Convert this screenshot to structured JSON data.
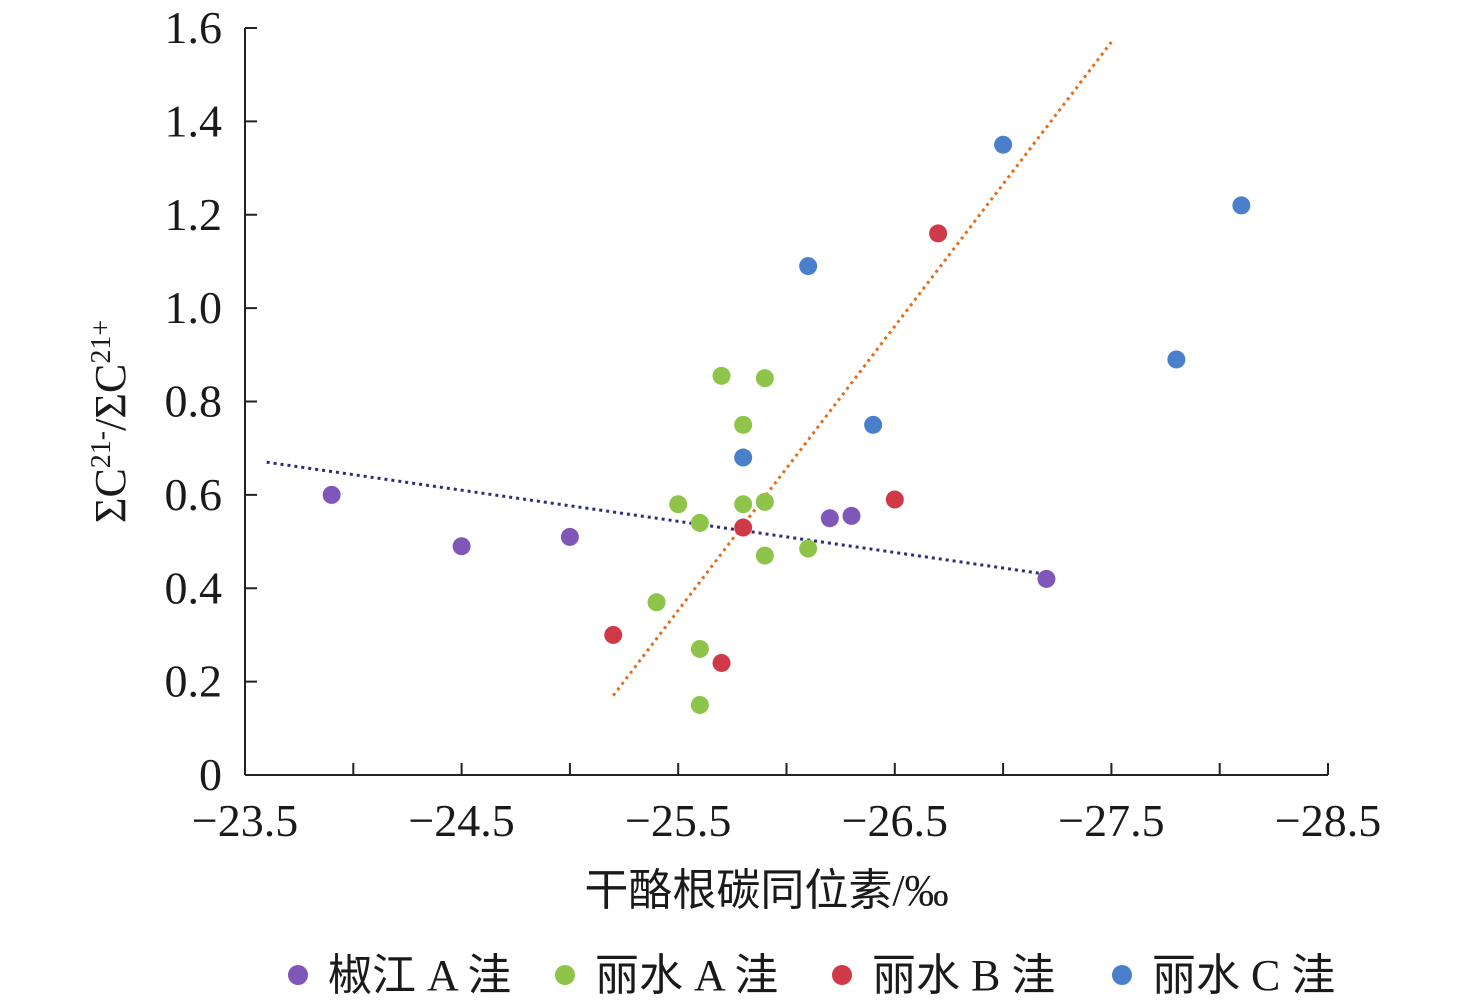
{
  "chart_data": {
    "type": "scatter",
    "xlabel": "干酪根碳同位素/‰",
    "ylabel": "ΣC21-/ΣC21+",
    "xlim": [
      -23.5,
      -28.5
    ],
    "ylim": [
      0,
      1.6
    ],
    "x_reversed": true,
    "x_tick_values": [
      -23.5,
      -24.5,
      -25.5,
      -26.5,
      -27.5,
      -28.5
    ],
    "x_tick_labels": [
      "−23.5",
      "−24.5",
      "−25.5",
      "−26.5",
      "−27.5",
      "−28.5"
    ],
    "y_tick_values": [
      0,
      0.2,
      0.4,
      0.6,
      0.8,
      1.0,
      1.2,
      1.4,
      1.6
    ],
    "y_tick_labels": [
      "0",
      "0.2",
      "0.4",
      "0.6",
      "0.8",
      "1.0",
      "1.2",
      "1.4",
      "1.6"
    ],
    "legend_position": "bottom",
    "series": [
      {
        "name": "椒江 A 洼",
        "color": "#7e57b8",
        "points": [
          [
            -23.9,
            0.6
          ],
          [
            -24.5,
            0.49
          ],
          [
            -25.0,
            0.51
          ],
          [
            -26.2,
            0.55
          ],
          [
            -26.3,
            0.555
          ],
          [
            -27.2,
            0.42
          ]
        ]
      },
      {
        "name": "丽水 A 洼",
        "color": "#8dc449",
        "points": [
          [
            -25.7,
            0.855
          ],
          [
            -25.9,
            0.85
          ],
          [
            -25.8,
            0.75
          ],
          [
            -25.5,
            0.58
          ],
          [
            -25.8,
            0.58
          ],
          [
            -25.9,
            0.585
          ],
          [
            -25.6,
            0.54
          ],
          [
            -25.9,
            0.47
          ],
          [
            -26.1,
            0.485
          ],
          [
            -25.4,
            0.37
          ],
          [
            -25.6,
            0.27
          ],
          [
            -25.6,
            0.15
          ]
        ]
      },
      {
        "name": "丽水 B 洼",
        "color": "#d03a48",
        "points": [
          [
            -26.7,
            1.16
          ],
          [
            -26.5,
            0.59
          ],
          [
            -25.8,
            0.53
          ],
          [
            -25.2,
            0.3
          ],
          [
            -25.7,
            0.24
          ]
        ]
      },
      {
        "name": "丽水 C 洼",
        "color": "#4a7fcb",
        "points": [
          [
            -27.0,
            1.35
          ],
          [
            -28.1,
            1.22
          ],
          [
            -26.1,
            1.09
          ],
          [
            -27.8,
            0.89
          ],
          [
            -26.4,
            0.75
          ],
          [
            -25.8,
            0.68
          ]
        ]
      }
    ],
    "trendlines": [
      {
        "color": "#2b2e7a",
        "points": [
          [
            -23.6,
            0.67
          ],
          [
            -27.2,
            0.43
          ]
        ]
      },
      {
        "color": "#e07020",
        "points": [
          [
            -25.2,
            0.17
          ],
          [
            -27.5,
            1.57
          ]
        ]
      }
    ]
  }
}
